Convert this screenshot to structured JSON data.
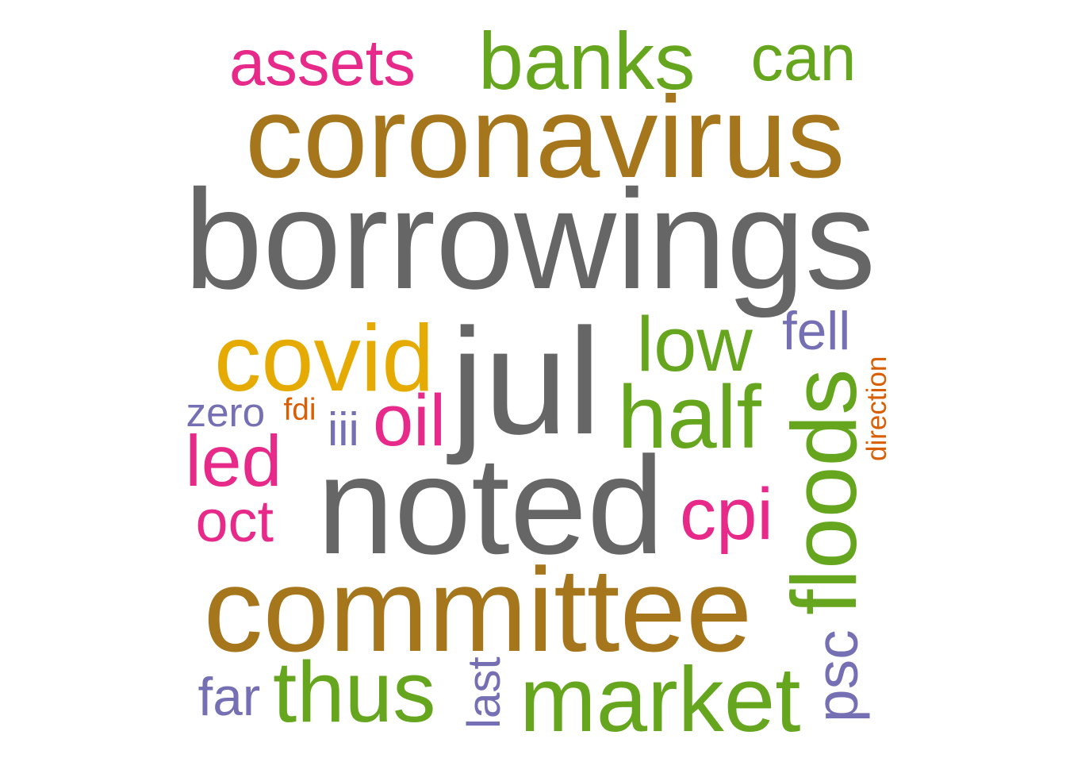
{
  "chart_data": {
    "type": "wordcloud",
    "words": [
      {
        "text": "borrowings",
        "color": "#666666",
        "rotated": false
      },
      {
        "text": "noted",
        "color": "#666666",
        "rotated": false
      },
      {
        "text": "jul",
        "color": "#666666",
        "rotated": false
      },
      {
        "text": "coronavirus",
        "color": "#A6761D",
        "rotated": false
      },
      {
        "text": "committee",
        "color": "#A6761D",
        "rotated": false
      },
      {
        "text": "assets",
        "color": "#E7298A",
        "rotated": false
      },
      {
        "text": "banks",
        "color": "#66A61E",
        "rotated": false
      },
      {
        "text": "can",
        "color": "#66A61E",
        "rotated": false
      },
      {
        "text": "covid",
        "color": "#E6AB02",
        "rotated": false
      },
      {
        "text": "low",
        "color": "#66A61E",
        "rotated": false
      },
      {
        "text": "fell",
        "color": "#7570B3",
        "rotated": false
      },
      {
        "text": "half",
        "color": "#66A61E",
        "rotated": false
      },
      {
        "text": "floods",
        "color": "#66A61E",
        "rotated": true
      },
      {
        "text": "direction",
        "color": "#D95F02",
        "rotated": true
      },
      {
        "text": "zero",
        "color": "#7570B3",
        "rotated": false
      },
      {
        "text": "fdi",
        "color": "#D95F02",
        "rotated": false
      },
      {
        "text": "iii",
        "color": "#7570B3",
        "rotated": false
      },
      {
        "text": "oil",
        "color": "#E7298A",
        "rotated": false
      },
      {
        "text": "led",
        "color": "#E7298A",
        "rotated": false
      },
      {
        "text": "oct",
        "color": "#E7298A",
        "rotated": false
      },
      {
        "text": "cpi",
        "color": "#E7298A",
        "rotated": false
      },
      {
        "text": "psc",
        "color": "#7570B3",
        "rotated": true
      },
      {
        "text": "far",
        "color": "#7570B3",
        "rotated": false
      },
      {
        "text": "thus",
        "color": "#66A61E",
        "rotated": false
      },
      {
        "text": "last",
        "color": "#7570B3",
        "rotated": true
      },
      {
        "text": "market",
        "color": "#66A61E",
        "rotated": false
      }
    ]
  }
}
